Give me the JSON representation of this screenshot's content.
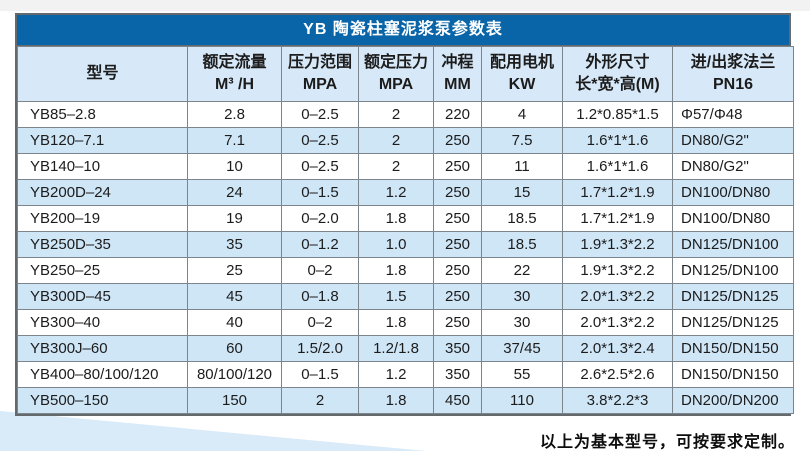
{
  "title": "YB 陶瓷柱塞泥浆泵参数表",
  "table": {
    "columns": [
      {
        "line1": "型号",
        "line2": ""
      },
      {
        "line1": "额定流量",
        "line2": "M³ /H"
      },
      {
        "line1": "压力范围",
        "line2": "MPA"
      },
      {
        "line1": "额定压力",
        "line2": "MPA"
      },
      {
        "line1": "冲程",
        "line2": "MM"
      },
      {
        "line1": "配用电机",
        "line2": "KW"
      },
      {
        "line1": "外形尺寸",
        "line2": "长*宽*高(M)"
      },
      {
        "line1": "进/出浆法兰",
        "line2": "PN16"
      }
    ],
    "rows": [
      [
        "YB85–2.8",
        "2.8",
        "0–2.5",
        "2",
        "220",
        "4",
        "1.2*0.85*1.5",
        "Φ57/Φ48"
      ],
      [
        "YB120–7.1",
        "7.1",
        "0–2.5",
        "2",
        "250",
        "7.5",
        "1.6*1*1.6",
        "DN80/G2\""
      ],
      [
        "YB140–10",
        "10",
        "0–2.5",
        "2",
        "250",
        "11",
        "1.6*1*1.6",
        "DN80/G2\""
      ],
      [
        "YB200D–24",
        "24",
        "0–1.5",
        "1.2",
        "250",
        "15",
        "1.7*1.2*1.9",
        "DN100/DN80"
      ],
      [
        "YB200–19",
        "19",
        "0–2.0",
        "1.8",
        "250",
        "18.5",
        "1.7*1.2*1.9",
        "DN100/DN80"
      ],
      [
        "YB250D–35",
        "35",
        "0–1.2",
        "1.0",
        "250",
        "18.5",
        "1.9*1.3*2.2",
        "DN125/DN100"
      ],
      [
        "YB250–25",
        "25",
        "0–2",
        "1.8",
        "250",
        "22",
        "1.9*1.3*2.2",
        "DN125/DN100"
      ],
      [
        "YB300D–45",
        "45",
        "0–1.8",
        "1.5",
        "250",
        "30",
        "2.0*1.3*2.2",
        "DN125/DN125"
      ],
      [
        "YB300–40",
        "40",
        "0–2",
        "1.8",
        "250",
        "30",
        "2.0*1.3*2.2",
        "DN125/DN125"
      ],
      [
        "YB300J–60",
        "60",
        "1.5/2.0",
        "1.2/1.8",
        "350",
        "37/45",
        "2.0*1.3*2.4",
        "DN150/DN150"
      ],
      [
        "YB400–80/100/120",
        "80/100/120",
        "0–1.5",
        "1.2",
        "350",
        "55",
        "2.6*2.5*2.6",
        "DN150/DN150"
      ],
      [
        "YB500–150",
        "150",
        "2",
        "1.8",
        "450",
        "110",
        "3.8*2.2*3",
        "DN200/DN200"
      ]
    ]
  },
  "footer": {
    "note": "以上为基本型号，可按要求定制。"
  },
  "colors": {
    "accent_blue": "#0a64a8",
    "header_row_bg": "#d7e9f8",
    "alt_row_bg": "#cfe6f7",
    "grid_border": "#7d858c",
    "outer_border": "#63696d",
    "text": "#1c1c1c",
    "wedge_bg": "#d9eaf8"
  }
}
